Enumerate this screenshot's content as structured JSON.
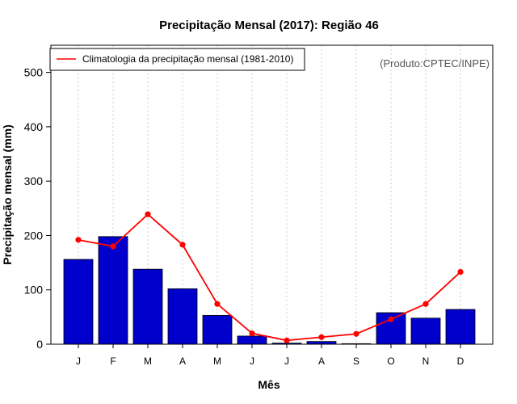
{
  "chart_data": {
    "type": "bar",
    "title": "Precipitação Mensal (2017): Região 46",
    "xlabel": "Mês",
    "ylabel": "Precipitação mensal (mm)",
    "credit": "(Produto:CPTEC/INPE)",
    "categories": [
      "J",
      "F",
      "M",
      "A",
      "M",
      "J",
      "J",
      "A",
      "S",
      "O",
      "N",
      "D"
    ],
    "ylim": [
      0,
      550
    ],
    "yticks": [
      0,
      100,
      200,
      300,
      400,
      500
    ],
    "grid": "vertical dotted",
    "legend_position": "top-left",
    "series": [
      {
        "name": "Precipitação mensal 2017",
        "type": "bar",
        "color": "#0000CD",
        "values": [
          156,
          198,
          138,
          102,
          53,
          15,
          2,
          5,
          1,
          58,
          48,
          64
        ]
      },
      {
        "name": "Climatologia da precipitação mensal (1981-2010)",
        "type": "line",
        "color": "#FF0000",
        "values": [
          192,
          180,
          239,
          183,
          74,
          20,
          7,
          13,
          19,
          46,
          74,
          133
        ]
      }
    ]
  }
}
